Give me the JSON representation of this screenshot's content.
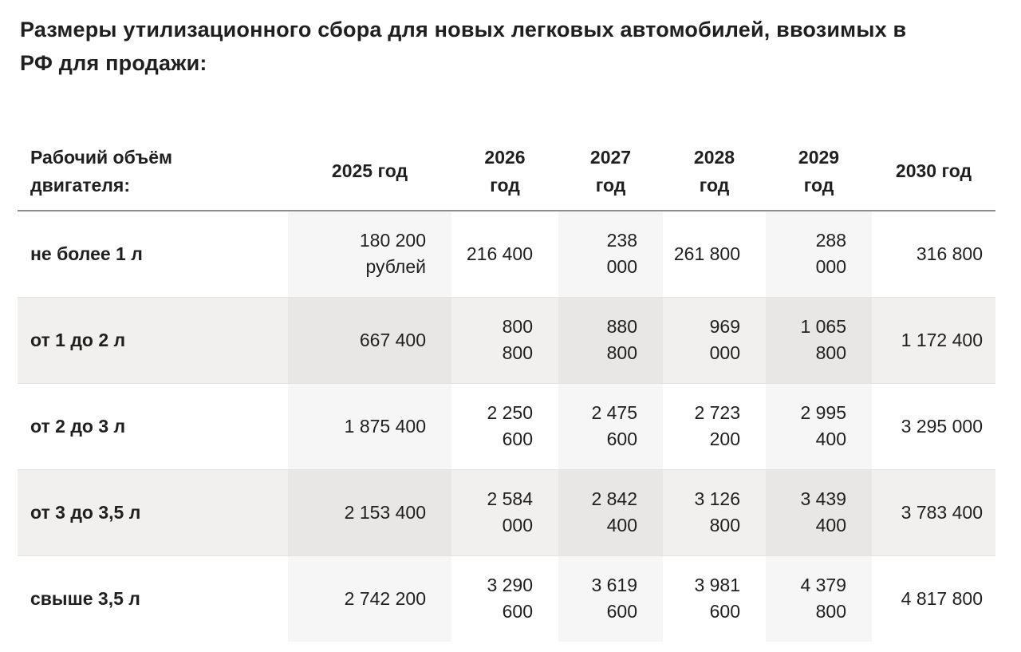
{
  "page": {
    "title": "Размеры утилизационного сбора для новых легковых автомобилей, ввозимых в\nРФ для продажи:"
  },
  "table": {
    "header": {
      "engine_volume": "Рабочий объём\nдвигателя:",
      "years": [
        "2025 год",
        "2026\nгод",
        "2027\nгод",
        "2028\nгод",
        "2029\nгод",
        "2030 год"
      ]
    },
    "rows": [
      {
        "label": "не более 1 л",
        "values": [
          "180 200\nрублей",
          "216 400",
          "238\n000",
          "261 800",
          "288\n000",
          "316 800"
        ]
      },
      {
        "label": "от 1 до 2 л",
        "values": [
          "667 400",
          "800\n800",
          "880\n800",
          "969\n000",
          "1 065\n800",
          "1 172 400"
        ]
      },
      {
        "label": "от 2 до 3 л",
        "values": [
          "1 875 400",
          "2 250\n600",
          "2 475\n600",
          "2 723\n200",
          "2 995\n400",
          "3 295 000"
        ]
      },
      {
        "label": "от 3 до 3,5 л",
        "values": [
          "2 153 400",
          "2 584\n000",
          "2 842\n400",
          "3 126\n800",
          "3 439\n400",
          "3 783 400"
        ]
      },
      {
        "label": "свыше 3,5 л",
        "values": [
          "2 742 200",
          "3 290\n600",
          "3 619\n600",
          "3 981\n600",
          "4 379\n800",
          "4 817 800"
        ]
      }
    ]
  },
  "colors": {
    "text": "#1f1f1f",
    "background": "#ffffff",
    "striped_row": "#f1f0ee",
    "shaded_cell_on_white": "#f7f7f6",
    "shaded_cell_on_gray": "#e9e8e7",
    "header_rule": "#8e8e8e",
    "row_divider": "#e3e3e2"
  }
}
